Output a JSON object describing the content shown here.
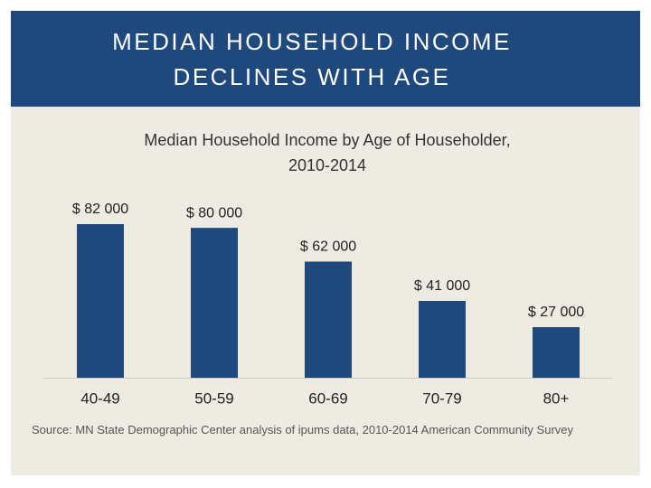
{
  "header": {
    "title_lines": [
      "MEDIAN HOUSEHOLD INCOME",
      "DECLINES WITH AGE"
    ]
  },
  "chart_data": {
    "type": "bar",
    "title_lines": [
      "Median Household Income by Age of Householder,",
      "2010-2014"
    ],
    "categories": [
      "40-49",
      "50-59",
      "60-69",
      "70-79",
      "80+"
    ],
    "values": [
      82000,
      80000,
      62000,
      41000,
      27000
    ],
    "value_labels": [
      "$ 82 000",
      "$ 80 000",
      "$ 62 000",
      "$ 41 000",
      "$ 27 000"
    ],
    "color": "#1f497d",
    "source": "Source: MN State Demographic Center analysis of ipums data, 2010-2014 American Community Survey"
  }
}
